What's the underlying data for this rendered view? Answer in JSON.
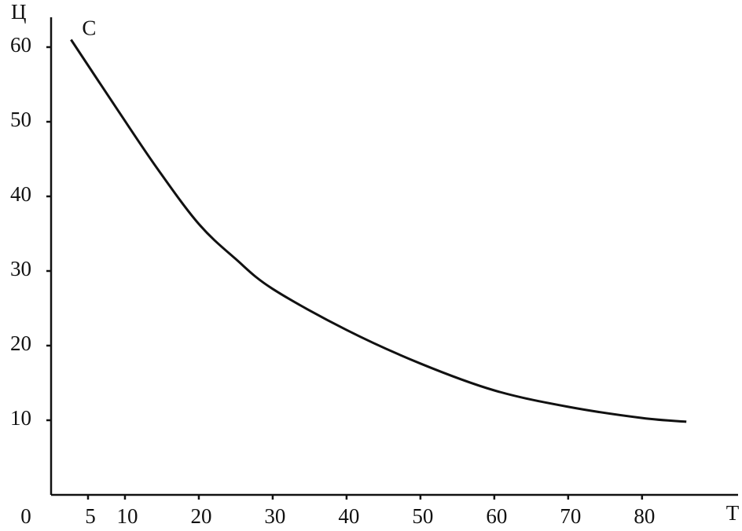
{
  "chart_data": {
    "type": "line",
    "x_label": "T",
    "y_label": "Ц",
    "x": [
      2.7,
      9,
      14.4,
      20,
      25,
      30,
      40,
      50,
      60,
      70,
      80,
      86
    ],
    "series": [
      {
        "name": "C",
        "color": "#111111",
        "values": [
          61,
          51.6,
          43.7,
          36.3,
          31.6,
          27.6,
          22.1,
          17.6,
          14,
          11.8,
          10.3,
          9.8
        ]
      }
    ],
    "xlim": [
      0,
      93
    ],
    "ylim": [
      0,
      64
    ],
    "xticks": [
      0,
      5,
      10,
      20,
      30,
      40,
      50,
      60,
      70,
      80
    ],
    "yticks": [
      10,
      20,
      30,
      40,
      50,
      60
    ],
    "grid": false
  }
}
